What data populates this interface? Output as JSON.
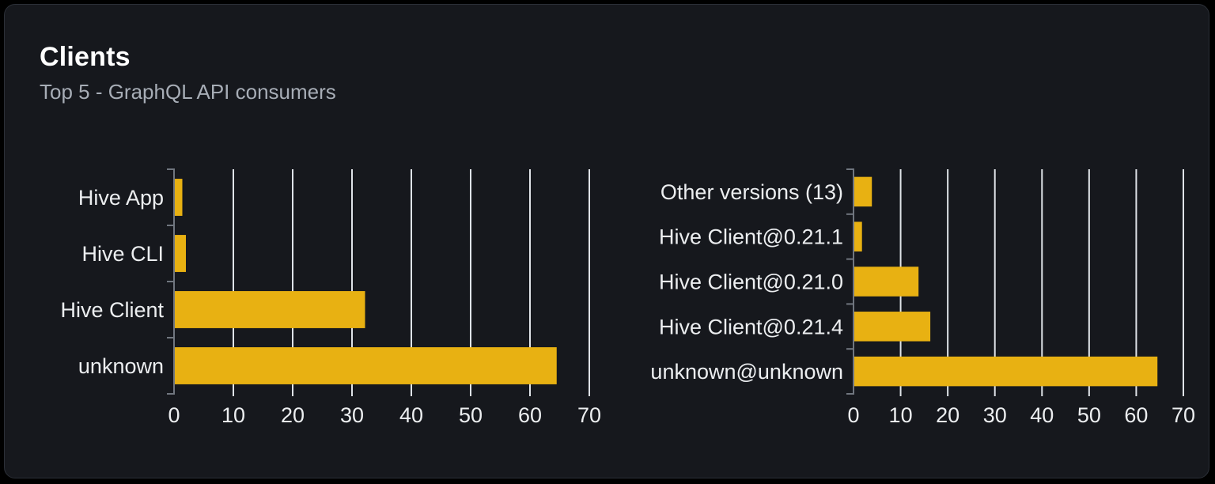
{
  "card": {
    "title": "Clients",
    "subtitle": "Top 5 - GraphQL API consumers"
  },
  "colors": {
    "page_bg": "#000000",
    "card_bg": "#16181d",
    "card_border": "#2b2f37",
    "title": "#ffffff",
    "subtitle": "#a7adb6",
    "bar": "#e8b112",
    "grid": "#dfe3e8",
    "axis": "#70767f",
    "label": "#eceef0"
  },
  "chart_data": [
    {
      "type": "bar",
      "orientation": "horizontal",
      "name": "clients-by-name",
      "categories": [
        "Hive App",
        "Hive CLI",
        "Hive Client",
        "unknown"
      ],
      "values": [
        1.4,
        2,
        32.2,
        64.5
      ],
      "xlim": [
        0,
        70
      ],
      "xticks": [
        0,
        10,
        20,
        30,
        40,
        50,
        60,
        70
      ],
      "grid": true,
      "legend": false,
      "xlabel": "",
      "ylabel": ""
    },
    {
      "type": "bar",
      "orientation": "horizontal",
      "name": "clients-by-version",
      "categories": [
        "Other versions (13)",
        "Hive Client@0.21.1",
        "Hive Client@0.21.0",
        "Hive Client@0.21.4",
        "unknown@unknown"
      ],
      "values": [
        3.9,
        1.8,
        13.8,
        16.3,
        64.5
      ],
      "xlim": [
        0,
        70
      ],
      "xticks": [
        0,
        10,
        20,
        30,
        40,
        50,
        60,
        70
      ],
      "grid": true,
      "legend": false,
      "xlabel": "",
      "ylabel": ""
    }
  ]
}
